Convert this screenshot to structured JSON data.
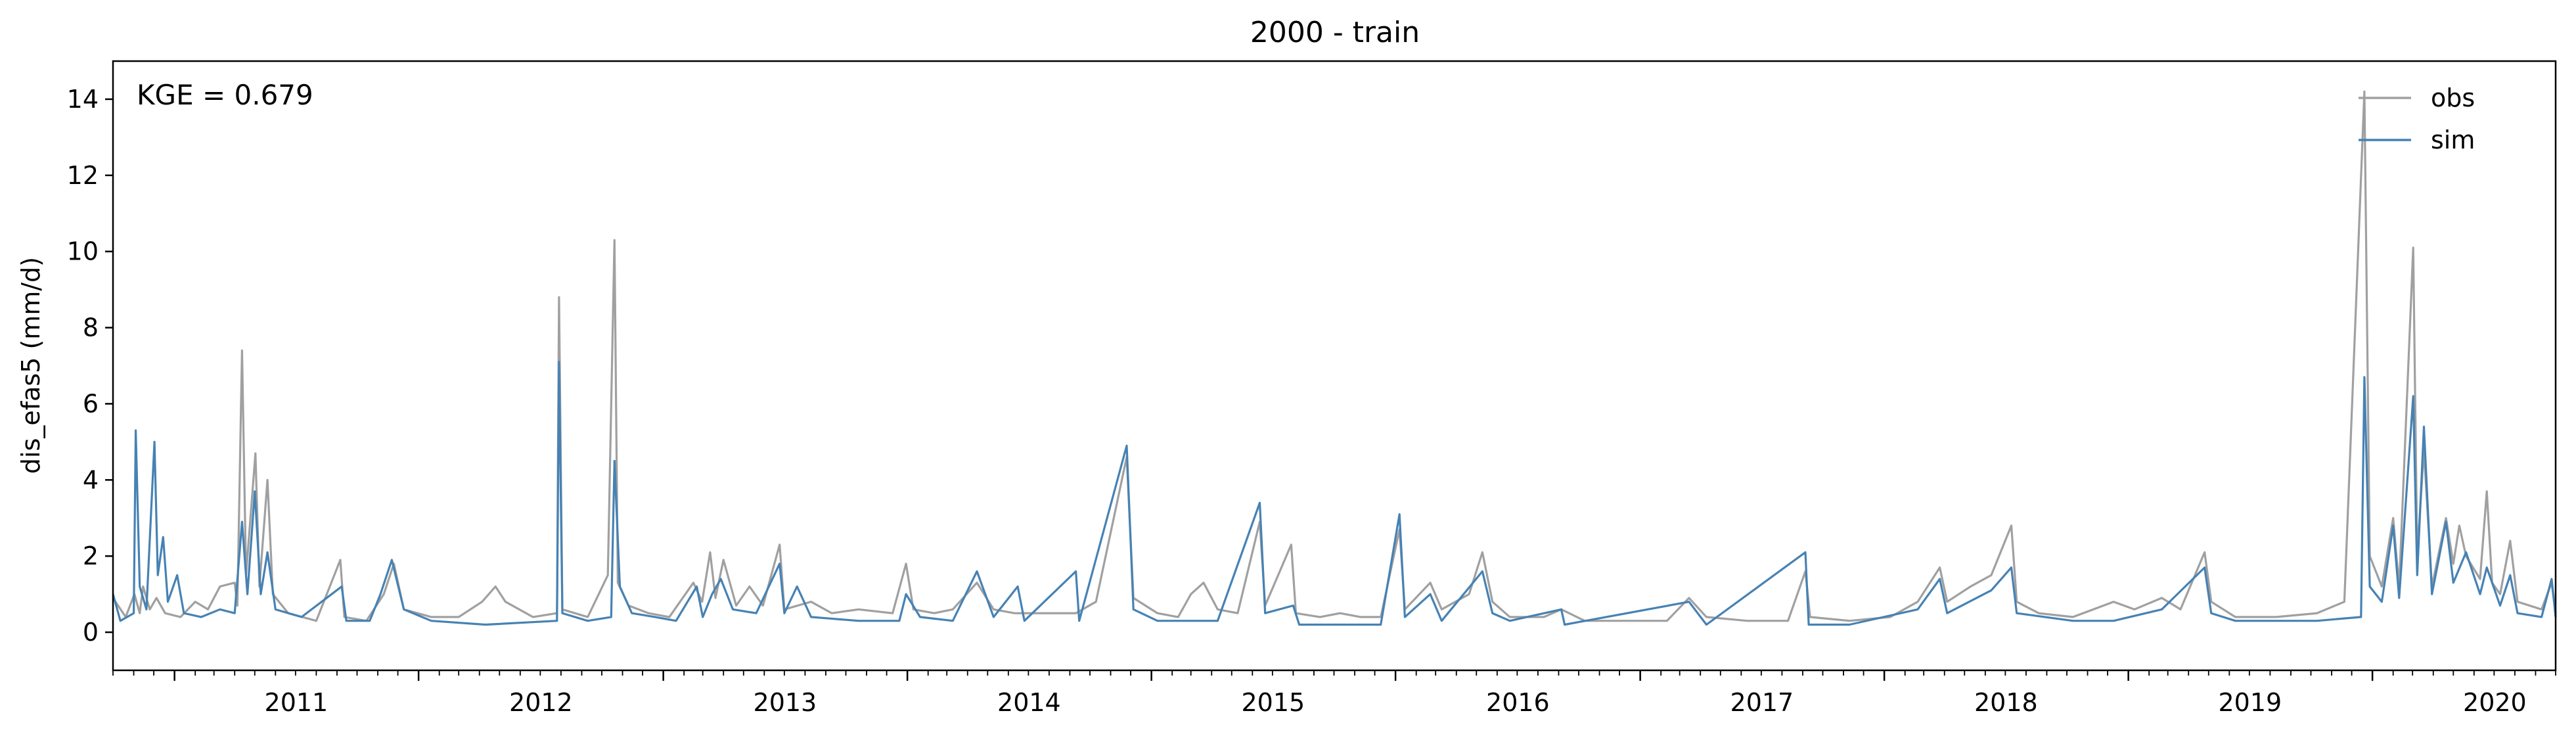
{
  "chart_data": {
    "type": "line",
    "title": "2000 - train",
    "xlabel": "",
    "ylabel": "dis_efas5 (mm/d)",
    "annotation": "KGE = 0.679",
    "xlim": [
      "2010-10-01",
      "2020-10-01"
    ],
    "ylim": [
      -1,
      15
    ],
    "y_ticks": [
      0,
      2,
      4,
      6,
      8,
      10,
      12,
      14
    ],
    "x_ticks": [
      "2011",
      "2012",
      "2013",
      "2014",
      "2015",
      "2016",
      "2017",
      "2018",
      "2019",
      "2020"
    ],
    "grid": false,
    "legend_position": "top-right",
    "series": [
      {
        "name": "obs",
        "color": "#a0a0a0",
        "points": [
          [
            "2010-10-01",
            0.9
          ],
          [
            "2010-10-20",
            0.4
          ],
          [
            "2010-11-02",
            1.0
          ],
          [
            "2010-11-10",
            0.5
          ],
          [
            "2010-11-15",
            1.2
          ],
          [
            "2010-11-25",
            0.6
          ],
          [
            "2010-12-05",
            0.9
          ],
          [
            "2010-12-18",
            0.5
          ],
          [
            "2011-01-10",
            0.4
          ],
          [
            "2011-02-01",
            0.8
          ],
          [
            "2011-02-20",
            0.6
          ],
          [
            "2011-03-10",
            1.2
          ],
          [
            "2011-04-01",
            1.3
          ],
          [
            "2011-04-05",
            0.7
          ],
          [
            "2011-04-12",
            7.4
          ],
          [
            "2011-04-18",
            1.5
          ],
          [
            "2011-05-02",
            4.7
          ],
          [
            "2011-05-08",
            1.2
          ],
          [
            "2011-05-20",
            4.0
          ],
          [
            "2011-05-28",
            1.0
          ],
          [
            "2011-06-20",
            0.5
          ],
          [
            "2011-08-01",
            0.3
          ],
          [
            "2011-09-06",
            1.9
          ],
          [
            "2011-09-12",
            0.4
          ],
          [
            "2011-10-15",
            0.3
          ],
          [
            "2011-11-10",
            1.0
          ],
          [
            "2011-11-25",
            1.8
          ],
          [
            "2011-12-10",
            0.6
          ],
          [
            "2012-01-20",
            0.4
          ],
          [
            "2012-03-01",
            0.4
          ],
          [
            "2012-04-05",
            0.8
          ],
          [
            "2012-04-25",
            1.2
          ],
          [
            "2012-05-10",
            0.8
          ],
          [
            "2012-06-20",
            0.4
          ],
          [
            "2012-07-26",
            0.5
          ],
          [
            "2012-07-29",
            8.8
          ],
          [
            "2012-08-03",
            0.6
          ],
          [
            "2012-09-10",
            0.4
          ],
          [
            "2012-10-10",
            1.5
          ],
          [
            "2012-10-20",
            10.3
          ],
          [
            "2012-10-25",
            1.3
          ],
          [
            "2012-11-10",
            0.7
          ],
          [
            "2012-12-10",
            0.5
          ],
          [
            "2013-01-10",
            0.4
          ],
          [
            "2013-02-15",
            1.3
          ],
          [
            "2013-02-28",
            0.8
          ],
          [
            "2013-03-12",
            2.1
          ],
          [
            "2013-03-20",
            0.9
          ],
          [
            "2013-04-01",
            1.9
          ],
          [
            "2013-04-20",
            0.7
          ],
          [
            "2013-05-10",
            1.2
          ],
          [
            "2013-05-30",
            0.7
          ],
          [
            "2013-06-24",
            2.3
          ],
          [
            "2013-07-01",
            0.6
          ],
          [
            "2013-08-10",
            0.8
          ],
          [
            "2013-09-10",
            0.5
          ],
          [
            "2013-10-20",
            0.6
          ],
          [
            "2013-12-10",
            0.5
          ],
          [
            "2013-12-30",
            1.8
          ],
          [
            "2014-01-10",
            0.6
          ],
          [
            "2014-02-10",
            0.5
          ],
          [
            "2014-03-10",
            0.6
          ],
          [
            "2014-04-15",
            1.3
          ],
          [
            "2014-05-10",
            0.6
          ],
          [
            "2014-06-10",
            0.5
          ],
          [
            "2014-07-10",
            0.5
          ],
          [
            "2014-08-10",
            0.5
          ],
          [
            "2014-09-10",
            0.5
          ],
          [
            "2014-10-10",
            0.8
          ],
          [
            "2014-11-25",
            4.6
          ],
          [
            "2014-12-05",
            0.9
          ],
          [
            "2015-01-10",
            0.5
          ],
          [
            "2015-02-10",
            0.4
          ],
          [
            "2015-03-01",
            1.0
          ],
          [
            "2015-03-20",
            1.3
          ],
          [
            "2015-04-10",
            0.6
          ],
          [
            "2015-05-10",
            0.5
          ],
          [
            "2015-06-12",
            2.9
          ],
          [
            "2015-06-20",
            0.7
          ],
          [
            "2015-07-29",
            2.3
          ],
          [
            "2015-08-05",
            0.5
          ],
          [
            "2015-09-10",
            0.4
          ],
          [
            "2015-10-10",
            0.5
          ],
          [
            "2015-11-10",
            0.4
          ],
          [
            "2015-12-10",
            0.4
          ],
          [
            "2016-01-07",
            2.7
          ],
          [
            "2016-01-15",
            0.6
          ],
          [
            "2016-02-22",
            1.3
          ],
          [
            "2016-03-10",
            0.6
          ],
          [
            "2016-04-20",
            1.0
          ],
          [
            "2016-05-10",
            2.1
          ],
          [
            "2016-05-25",
            0.8
          ],
          [
            "2016-06-20",
            0.4
          ],
          [
            "2016-08-10",
            0.4
          ],
          [
            "2016-09-05",
            0.6
          ],
          [
            "2016-10-10",
            0.3
          ],
          [
            "2016-12-10",
            0.3
          ],
          [
            "2017-02-10",
            0.3
          ],
          [
            "2017-03-15",
            0.9
          ],
          [
            "2017-04-10",
            0.4
          ],
          [
            "2017-06-10",
            0.3
          ],
          [
            "2017-08-10",
            0.3
          ],
          [
            "2017-09-05",
            1.6
          ],
          [
            "2017-09-12",
            0.4
          ],
          [
            "2017-11-10",
            0.3
          ],
          [
            "2018-01-10",
            0.4
          ],
          [
            "2018-02-20",
            0.8
          ],
          [
            "2018-03-25",
            1.7
          ],
          [
            "2018-04-05",
            0.8
          ],
          [
            "2018-05-10",
            1.2
          ],
          [
            "2018-06-10",
            1.5
          ],
          [
            "2018-07-10",
            2.8
          ],
          [
            "2018-07-18",
            0.8
          ],
          [
            "2018-08-20",
            0.5
          ],
          [
            "2018-10-10",
            0.4
          ],
          [
            "2018-12-10",
            0.8
          ],
          [
            "2019-01-10",
            0.6
          ],
          [
            "2019-02-20",
            0.9
          ],
          [
            "2019-03-20",
            0.6
          ],
          [
            "2019-04-25",
            2.1
          ],
          [
            "2019-05-05",
            0.8
          ],
          [
            "2019-06-10",
            0.4
          ],
          [
            "2019-08-10",
            0.4
          ],
          [
            "2019-10-10",
            0.5
          ],
          [
            "2019-11-20",
            0.8
          ],
          [
            "2019-12-20",
            14.2
          ],
          [
            "2019-12-28",
            2.0
          ],
          [
            "2020-01-15",
            1.2
          ],
          [
            "2020-02-01",
            3.0
          ],
          [
            "2020-02-10",
            1.2
          ],
          [
            "2020-03-02",
            10.1
          ],
          [
            "2020-03-08",
            2.0
          ],
          [
            "2020-03-18",
            4.8
          ],
          [
            "2020-03-30",
            1.2
          ],
          [
            "2020-04-20",
            3.0
          ],
          [
            "2020-05-01",
            1.8
          ],
          [
            "2020-05-10",
            2.8
          ],
          [
            "2020-05-20",
            2.0
          ],
          [
            "2020-06-10",
            1.4
          ],
          [
            "2020-06-20",
            3.7
          ],
          [
            "2020-06-28",
            1.3
          ],
          [
            "2020-07-10",
            1.0
          ],
          [
            "2020-07-25",
            2.4
          ],
          [
            "2020-08-05",
            0.8
          ],
          [
            "2020-09-10",
            0.6
          ],
          [
            "2020-09-25",
            1.3
          ],
          [
            "2020-10-01",
            0.5
          ]
        ]
      },
      {
        "name": "sim",
        "color": "#4682b4",
        "points": [
          [
            "2010-10-01",
            1.0
          ],
          [
            "2010-10-12",
            0.3
          ],
          [
            "2010-11-01",
            0.5
          ],
          [
            "2010-11-04",
            5.3
          ],
          [
            "2010-11-10",
            1.2
          ],
          [
            "2010-11-20",
            0.6
          ],
          [
            "2010-12-02",
            5.0
          ],
          [
            "2010-12-07",
            1.5
          ],
          [
            "2010-12-15",
            2.5
          ],
          [
            "2010-12-22",
            0.8
          ],
          [
            "2011-01-05",
            1.5
          ],
          [
            "2011-01-15",
            0.5
          ],
          [
            "2011-02-10",
            0.4
          ],
          [
            "2011-03-10",
            0.6
          ],
          [
            "2011-04-01",
            0.5
          ],
          [
            "2011-04-12",
            2.9
          ],
          [
            "2011-04-20",
            1.0
          ],
          [
            "2011-05-01",
            3.7
          ],
          [
            "2011-05-10",
            1.0
          ],
          [
            "2011-05-20",
            2.1
          ],
          [
            "2011-06-01",
            0.6
          ],
          [
            "2011-07-10",
            0.4
          ],
          [
            "2011-09-08",
            1.2
          ],
          [
            "2011-09-15",
            0.3
          ],
          [
            "2011-10-20",
            0.3
          ],
          [
            "2011-11-05",
            1.0
          ],
          [
            "2011-11-22",
            1.9
          ],
          [
            "2011-12-10",
            0.6
          ],
          [
            "2012-01-20",
            0.3
          ],
          [
            "2012-04-10",
            0.2
          ],
          [
            "2012-07-26",
            0.3
          ],
          [
            "2012-07-29",
            7.1
          ],
          [
            "2012-08-03",
            0.5
          ],
          [
            "2012-09-10",
            0.3
          ],
          [
            "2012-10-15",
            0.4
          ],
          [
            "2012-10-20",
            4.5
          ],
          [
            "2012-10-28",
            1.2
          ],
          [
            "2012-11-15",
            0.5
          ],
          [
            "2012-12-20",
            0.4
          ],
          [
            "2013-01-20",
            0.3
          ],
          [
            "2013-02-20",
            1.2
          ],
          [
            "2013-03-01",
            0.4
          ],
          [
            "2013-03-15",
            1.0
          ],
          [
            "2013-03-28",
            1.4
          ],
          [
            "2013-04-15",
            0.6
          ],
          [
            "2013-05-20",
            0.5
          ],
          [
            "2013-06-24",
            1.8
          ],
          [
            "2013-07-01",
            0.5
          ],
          [
            "2013-07-20",
            1.2
          ],
          [
            "2013-08-10",
            0.4
          ],
          [
            "2013-10-20",
            0.3
          ],
          [
            "2013-12-20",
            0.3
          ],
          [
            "2013-12-30",
            1.0
          ],
          [
            "2014-01-20",
            0.4
          ],
          [
            "2014-03-10",
            0.3
          ],
          [
            "2014-04-15",
            1.6
          ],
          [
            "2014-05-10",
            0.4
          ],
          [
            "2014-06-15",
            1.2
          ],
          [
            "2014-06-25",
            0.3
          ],
          [
            "2014-09-10",
            1.6
          ],
          [
            "2014-09-15",
            0.3
          ],
          [
            "2014-11-25",
            4.9
          ],
          [
            "2014-12-05",
            0.6
          ],
          [
            "2015-01-10",
            0.3
          ],
          [
            "2015-04-10",
            0.3
          ],
          [
            "2015-06-12",
            3.4
          ],
          [
            "2015-06-20",
            0.5
          ],
          [
            "2015-08-01",
            0.7
          ],
          [
            "2015-08-10",
            0.2
          ],
          [
            "2015-12-10",
            0.2
          ],
          [
            "2016-01-07",
            3.1
          ],
          [
            "2016-01-15",
            0.4
          ],
          [
            "2016-02-22",
            1.0
          ],
          [
            "2016-03-10",
            0.3
          ],
          [
            "2016-05-10",
            1.6
          ],
          [
            "2016-05-25",
            0.5
          ],
          [
            "2016-06-20",
            0.3
          ],
          [
            "2016-09-05",
            0.6
          ],
          [
            "2016-09-10",
            0.2
          ],
          [
            "2017-03-15",
            0.8
          ],
          [
            "2017-04-10",
            0.2
          ],
          [
            "2017-09-05",
            2.1
          ],
          [
            "2017-09-10",
            0.2
          ],
          [
            "2017-11-10",
            0.2
          ],
          [
            "2018-02-20",
            0.6
          ],
          [
            "2018-03-25",
            1.4
          ],
          [
            "2018-04-05",
            0.5
          ],
          [
            "2018-06-10",
            1.1
          ],
          [
            "2018-07-10",
            1.7
          ],
          [
            "2018-07-18",
            0.5
          ],
          [
            "2018-10-10",
            0.3
          ],
          [
            "2018-12-10",
            0.3
          ],
          [
            "2019-02-20",
            0.6
          ],
          [
            "2019-04-25",
            1.7
          ],
          [
            "2019-05-05",
            0.5
          ],
          [
            "2019-06-10",
            0.3
          ],
          [
            "2019-10-10",
            0.3
          ],
          [
            "2019-12-15",
            0.4
          ],
          [
            "2019-12-20",
            6.7
          ],
          [
            "2019-12-28",
            1.2
          ],
          [
            "2020-01-15",
            0.8
          ],
          [
            "2020-02-01",
            2.8
          ],
          [
            "2020-02-10",
            0.9
          ],
          [
            "2020-03-02",
            6.2
          ],
          [
            "2020-03-08",
            1.5
          ],
          [
            "2020-03-18",
            5.4
          ],
          [
            "2020-03-30",
            1.0
          ],
          [
            "2020-04-20",
            2.9
          ],
          [
            "2020-05-01",
            1.3
          ],
          [
            "2020-05-20",
            2.1
          ],
          [
            "2020-06-10",
            1.0
          ],
          [
            "2020-06-20",
            1.7
          ],
          [
            "2020-07-10",
            0.7
          ],
          [
            "2020-07-25",
            1.5
          ],
          [
            "2020-08-05",
            0.5
          ],
          [
            "2020-09-10",
            0.4
          ],
          [
            "2020-09-25",
            1.4
          ],
          [
            "2020-10-01",
            0.4
          ]
        ]
      }
    ]
  }
}
